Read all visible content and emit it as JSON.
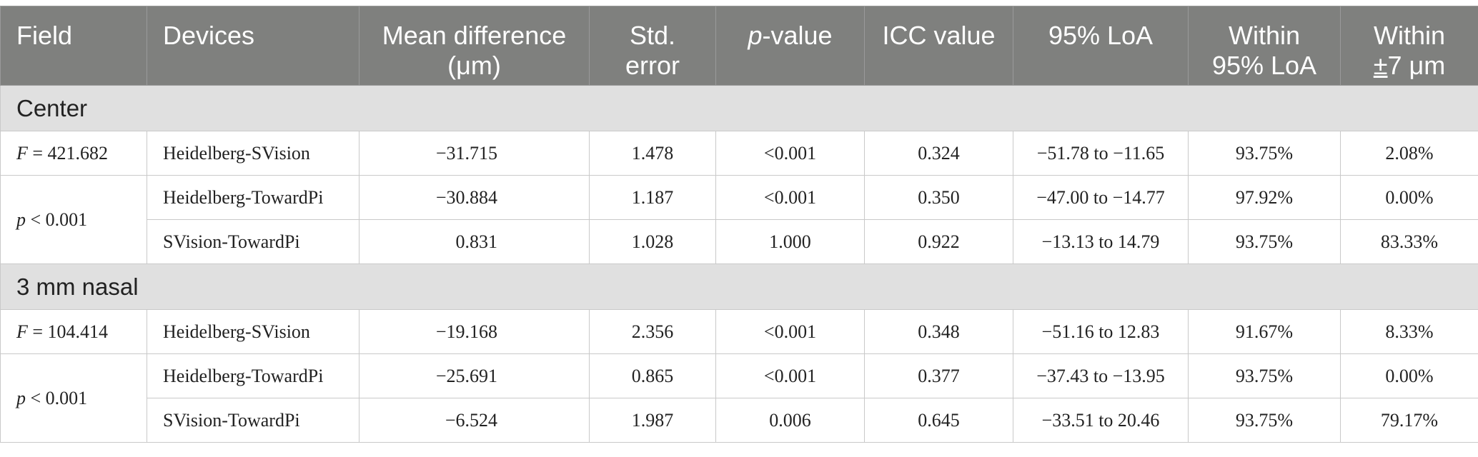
{
  "headers": {
    "field": "Field",
    "devices": "Devices",
    "mean_l1": "Mean difference",
    "mean_l2": "(μm)",
    "std_l1": "Std.",
    "std_l2": "error",
    "p_ital": "p",
    "p_rest": "-value",
    "icc": "ICC value",
    "loa": "95% LoA",
    "within_loa_l1": "Within",
    "within_loa_l2": "95% LoA",
    "within7_l1": "Within",
    "within7_pm": "±",
    "within7_rest": "7 μm"
  },
  "sections": [
    {
      "title": "Center",
      "stat_f_label": "F",
      "stat_f_value": " = 421.682",
      "stat_p_label": "p",
      "stat_p_value": " < 0.001",
      "rows": [
        {
          "device": "Heidelberg-SVision",
          "mean": "−31.715",
          "se": "1.478",
          "p": "<0.001",
          "icc": "0.324",
          "loa": "−51.78 to −11.65",
          "within_loa": "93.75%",
          "within7": "2.08%"
        },
        {
          "device": "Heidelberg-TowardPi",
          "mean": "−30.884",
          "se": "1.187",
          "p": "<0.001",
          "icc": "0.350",
          "loa": "−47.00 to −14.77",
          "within_loa": "97.92%",
          "within7": "0.00%"
        },
        {
          "device": "SVision-TowardPi",
          "mean": "0.831",
          "se": "1.028",
          "p": "1.000",
          "icc": "0.922",
          "loa": "−13.13 to 14.79",
          "within_loa": "93.75%",
          "within7": "83.33%"
        }
      ]
    },
    {
      "title": "3 mm nasal",
      "stat_f_label": "F",
      "stat_f_value": " = 104.414",
      "stat_p_label": "p",
      "stat_p_value": " < 0.001",
      "rows": [
        {
          "device": "Heidelberg-SVision",
          "mean": "−19.168",
          "se": "2.356",
          "p": "<0.001",
          "icc": "0.348",
          "loa": "−51.16 to 12.83",
          "within_loa": "91.67%",
          "within7": "8.33%"
        },
        {
          "device": "Heidelberg-TowardPi",
          "mean": "−25.691",
          "se": "0.865",
          "p": "<0.001",
          "icc": "0.377",
          "loa": "−37.43 to −13.95",
          "within_loa": "93.75%",
          "within7": "0.00%"
        },
        {
          "device": "SVision-TowardPi",
          "mean": "−6.524",
          "se": "1.987",
          "p": "0.006",
          "icc": "0.645",
          "loa": "−33.51 to 20.46",
          "within_loa": "93.75%",
          "within7": "79.17%"
        }
      ]
    }
  ]
}
